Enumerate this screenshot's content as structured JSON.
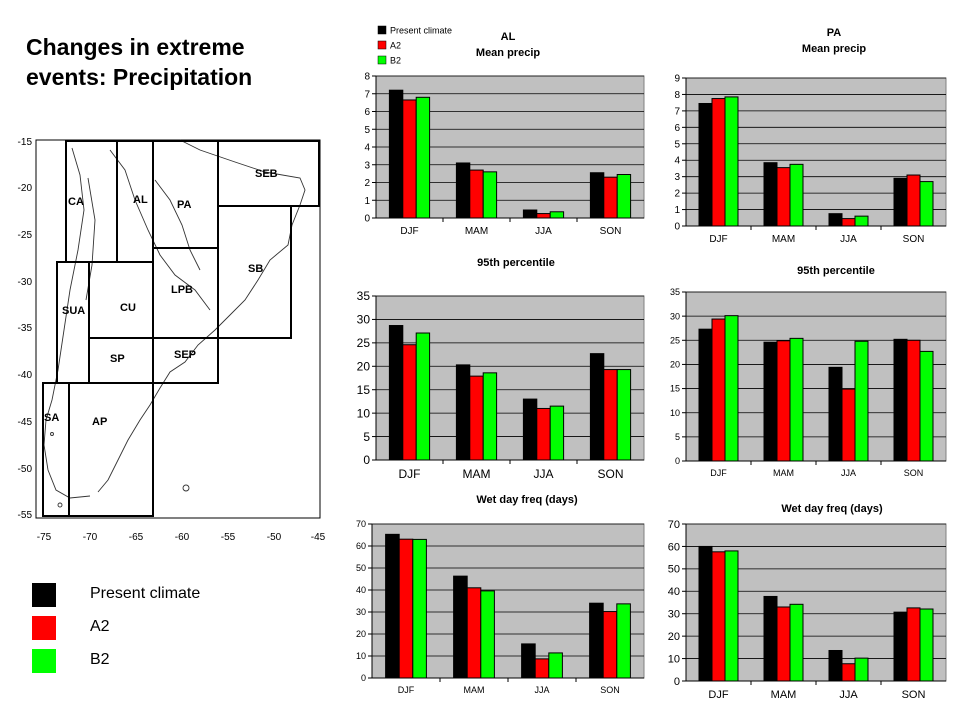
{
  "slide": {
    "title": "Changes in extreme\nevents: Precipitation"
  },
  "colors": {
    "present": "#000000",
    "a2": "#ff0000",
    "b2": "#00ff00",
    "plot_bg": "#c0c0c0",
    "grid": "#000000"
  },
  "legend": {
    "items": [
      {
        "name": "Present climate",
        "color": "#000000"
      },
      {
        "name": "A2",
        "color": "#ff0000"
      },
      {
        "name": "B2",
        "color": "#00ff00"
      }
    ]
  },
  "map": {
    "x_ticks": [
      "-75",
      "-70",
      "-65",
      "-60",
      "-55",
      "-50",
      "-45"
    ],
    "y_ticks": [
      "-15",
      "-20",
      "-25",
      "-30",
      "-35",
      "-40",
      "-45",
      "-50",
      "-55"
    ],
    "regions": [
      "SEB",
      "CA",
      "AL",
      "PA",
      "SB",
      "SUA",
      "CU",
      "LPB",
      "SP",
      "SEP",
      "SA",
      "AP"
    ]
  },
  "chart_data": [
    {
      "type": "bar",
      "region": "AL",
      "title": "AL",
      "subtitle": "Mean precip",
      "categories": [
        "DJF",
        "MAM",
        "JJA",
        "SON"
      ],
      "ylim": [
        0,
        8
      ],
      "yticks": [
        "0",
        "1",
        "2",
        "3",
        "4",
        "5",
        "6",
        "7",
        "8"
      ],
      "legend": [
        "Present climate",
        "A2",
        "B2"
      ],
      "series": [
        {
          "name": "Present climate",
          "values": [
            7.2,
            3.1,
            0.45,
            2.55
          ]
        },
        {
          "name": "A2",
          "values": [
            6.65,
            2.7,
            0.25,
            2.3
          ]
        },
        {
          "name": "B2",
          "values": [
            6.8,
            2.6,
            0.35,
            2.45
          ]
        }
      ]
    },
    {
      "type": "bar",
      "region": "PA",
      "title": "PA",
      "subtitle": "Mean precip",
      "categories": [
        "DJF",
        "MAM",
        "JJA",
        "SON"
      ],
      "ylim": [
        0,
        9
      ],
      "yticks": [
        "0",
        "1",
        "2",
        "3",
        "4",
        "5",
        "6",
        "7",
        "8",
        "9"
      ],
      "series": [
        {
          "name": "Present climate",
          "values": [
            7.45,
            3.85,
            0.75,
            2.9
          ]
        },
        {
          "name": "A2",
          "values": [
            7.75,
            3.55,
            0.45,
            3.1
          ]
        },
        {
          "name": "B2",
          "values": [
            7.85,
            3.75,
            0.6,
            2.7
          ]
        }
      ]
    },
    {
      "type": "bar",
      "region": "AL",
      "title": "95th percentile",
      "categories": [
        "DJF",
        "MAM",
        "JJA",
        "SON"
      ],
      "ylim": [
        0,
        35
      ],
      "yticks": [
        "0",
        "5",
        "10",
        "15",
        "20",
        "25",
        "30",
        "35"
      ],
      "series": [
        {
          "name": "Present climate",
          "values": [
            28.7,
            20.3,
            13.0,
            22.7
          ]
        },
        {
          "name": "A2",
          "values": [
            24.6,
            17.9,
            11.0,
            19.3
          ]
        },
        {
          "name": "B2",
          "values": [
            27.1,
            18.6,
            11.5,
            19.3
          ]
        }
      ]
    },
    {
      "type": "bar",
      "region": "PA",
      "title": "95th percentile",
      "categories": [
        "DJF",
        "MAM",
        "JJA",
        "SON"
      ],
      "ylim": [
        0,
        35
      ],
      "yticks": [
        "0",
        "5",
        "10",
        "15",
        "20",
        "25",
        "30",
        "35"
      ],
      "series": [
        {
          "name": "Present climate",
          "values": [
            27.3,
            24.6,
            19.4,
            25.2
          ]
        },
        {
          "name": "A2",
          "values": [
            29.4,
            24.9,
            14.9,
            25.0
          ]
        },
        {
          "name": "B2",
          "values": [
            30.1,
            25.4,
            24.8,
            22.7
          ]
        }
      ]
    },
    {
      "type": "bar",
      "region": "AL",
      "title": "Wet day freq (days)",
      "categories": [
        "DJF",
        "MAM",
        "JJA",
        "SON"
      ],
      "ylim": [
        0,
        70
      ],
      "yticks": [
        "0",
        "10",
        "20",
        "30",
        "40",
        "50",
        "60",
        "70"
      ],
      "series": [
        {
          "name": "Present climate",
          "values": [
            65.3,
            46.3,
            15.5,
            34.0
          ]
        },
        {
          "name": "A2",
          "values": [
            63.1,
            41.0,
            8.7,
            30.2
          ]
        },
        {
          "name": "B2",
          "values": [
            63.0,
            39.6,
            11.4,
            33.7
          ]
        }
      ]
    },
    {
      "type": "bar",
      "region": "PA",
      "title": "Wet day freq (days)",
      "categories": [
        "DJF",
        "MAM",
        "JJA",
        "SON"
      ],
      "ylim": [
        0,
        70
      ],
      "yticks": [
        "0",
        "10",
        "20",
        "30",
        "40",
        "50",
        "60",
        "70"
      ],
      "series": [
        {
          "name": "Present climate",
          "values": [
            60.0,
            37.7,
            13.6,
            30.7
          ]
        },
        {
          "name": "A2",
          "values": [
            57.6,
            33.0,
            7.7,
            32.6
          ]
        },
        {
          "name": "B2",
          "values": [
            58.0,
            34.2,
            10.2,
            32.1
          ]
        }
      ]
    }
  ]
}
